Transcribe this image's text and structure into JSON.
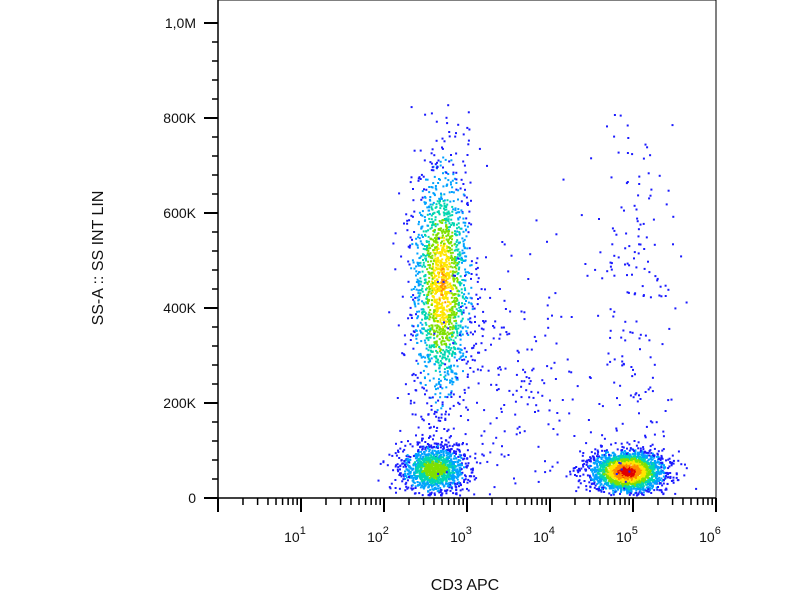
{
  "chart_data": {
    "type": "scatter",
    "subtype": "flow-cytometry density dot plot",
    "title": "",
    "xlabel": "CD3 APC",
    "ylabel": "SS-A :: SS INT LIN",
    "x_scale": "log",
    "xlim": [
      1,
      1000000
    ],
    "y_scale": "linear",
    "ylim": [
      0,
      1000000
    ],
    "x_ticks": [
      {
        "value": 10,
        "base": "10",
        "exp": "1"
      },
      {
        "value": 100,
        "base": "10",
        "exp": "2"
      },
      {
        "value": 1000,
        "base": "10",
        "exp": "3"
      },
      {
        "value": 10000,
        "base": "10",
        "exp": "4"
      },
      {
        "value": 100000,
        "base": "10",
        "exp": "5"
      },
      {
        "value": 1000000,
        "base": "10",
        "exp": "6"
      }
    ],
    "y_ticks": [
      {
        "value": 0,
        "label": "0"
      },
      {
        "value": 200000,
        "label": "200K"
      },
      {
        "value": 400000,
        "label": "400K"
      },
      {
        "value": 600000,
        "label": "600K"
      },
      {
        "value": 800000,
        "label": "800K"
      },
      {
        "value": 1000000,
        "label": "1,0M"
      }
    ],
    "grid": false,
    "legend": "none",
    "density_colors": [
      "#1a1aff",
      "#00a2ff",
      "#00d6b0",
      "#7fe000",
      "#ffe600",
      "#ff8c00",
      "#e00000"
    ],
    "populations": [
      {
        "x_center": 500,
        "y_center": 450000,
        "log_x_spread": 0.18,
        "y_spread": 130000,
        "peak_density": 0.75
      },
      {
        "x_center": 400,
        "y_center": 60000,
        "log_x_spread": 0.2,
        "y_spread": 25000,
        "peak_density": 0.55
      },
      {
        "x_center": 85000,
        "y_center": 55000,
        "log_x_spread": 0.22,
        "y_spread": 22000,
        "peak_density": 1.0
      },
      {
        "x_center": 3000,
        "y_center": 250000,
        "log_x_spread": 0.5,
        "y_spread": 150000,
        "peak_density": 0.05
      },
      {
        "x_center": 100000,
        "y_center": 450000,
        "log_x_spread": 0.25,
        "y_spread": 250000,
        "peak_density": 0.04
      }
    ]
  }
}
